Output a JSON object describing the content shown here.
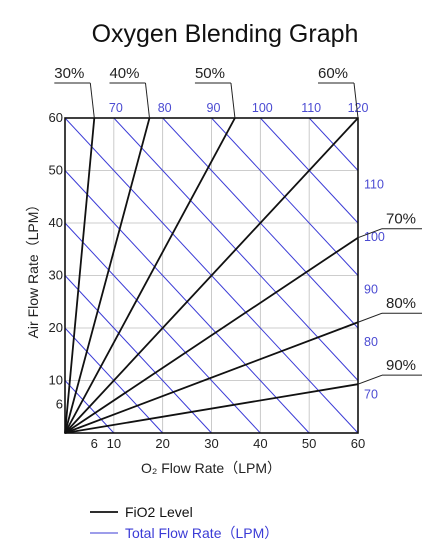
{
  "chart_data": {
    "type": "line",
    "title": "Oxygen Blending Graph",
    "xlabel": "O₂ Flow Rate（LPM）",
    "ylabel": "Air Flow Rate（LPM）",
    "xlim": [
      0,
      60
    ],
    "ylim": [
      0,
      60
    ],
    "x_ticks": [
      "6",
      "10",
      "20",
      "30",
      "40",
      "50",
      "60"
    ],
    "x_tick_values": [
      6,
      10,
      20,
      30,
      40,
      50,
      60
    ],
    "y_ticks": [
      "6",
      "10",
      "20",
      "30",
      "40",
      "50",
      "60"
    ],
    "y_tick_values": [
      6,
      10,
      20,
      30,
      40,
      50,
      60
    ],
    "grid": true,
    "fio2_series": [
      {
        "label": "30%",
        "x": [
          0,
          6.0
        ],
        "y": [
          0,
          60
        ]
      },
      {
        "label": "40%",
        "x": [
          0,
          17.3
        ],
        "y": [
          0,
          60
        ]
      },
      {
        "label": "50%",
        "x": [
          0,
          34.8
        ],
        "y": [
          0,
          60
        ]
      },
      {
        "label": "60%",
        "x": [
          0,
          60
        ],
        "y": [
          0,
          60
        ]
      },
      {
        "label": "70%",
        "x": [
          0,
          60
        ],
        "y": [
          0,
          37.2
        ]
      },
      {
        "label": "80%",
        "x": [
          0,
          60
        ],
        "y": [
          0,
          21.1
        ]
      },
      {
        "label": "90%",
        "x": [
          0,
          60
        ],
        "y": [
          0,
          9.3
        ]
      }
    ],
    "total_flow_lines": [
      10,
      20,
      30,
      40,
      50,
      60,
      70,
      80,
      90,
      100,
      110,
      120
    ],
    "total_flow_top_labels": [
      "70",
      "80",
      "90",
      "100",
      "110",
      "120"
    ],
    "total_flow_right_labels": [
      "110",
      "100",
      "90",
      "80",
      "70"
    ],
    "legend": [
      {
        "label": "FiO2 Level",
        "color": "#111111"
      },
      {
        "label": "Total Flow Rate（LPM）",
        "color": "#3b3bd6"
      }
    ],
    "legend_position": "bottom-left"
  }
}
